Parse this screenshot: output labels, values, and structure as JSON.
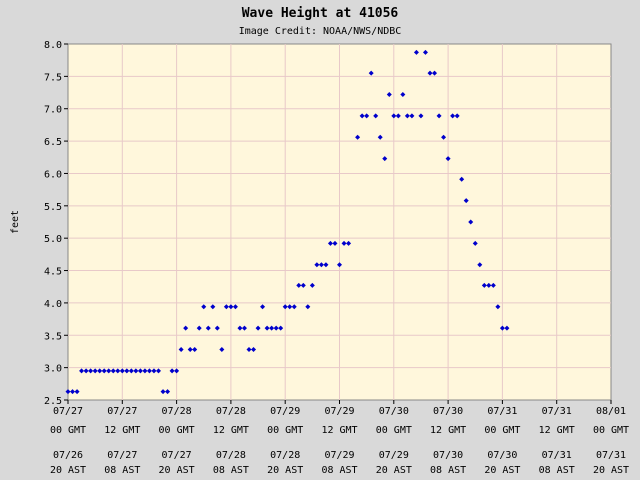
{
  "chart_data": {
    "type": "scatter",
    "title": "Wave Height at 41056",
    "subtitle": "Image Credit: NOAA/NWS/NDBC",
    "xlabel": "",
    "ylabel": "feet",
    "ylim": [
      2.5,
      8.0
    ],
    "y_ticks": [
      "2.5",
      "3.0",
      "3.5",
      "4.0",
      "4.5",
      "5.0",
      "5.5",
      "6.0",
      "6.5",
      "7.0",
      "7.5",
      "8.0"
    ],
    "xlim_hours_gmt": [
      0,
      120
    ],
    "x_ticks_gmt": [
      {
        "date": "07/27",
        "time": "00 GMT"
      },
      {
        "date": "07/27",
        "time": "12 GMT"
      },
      {
        "date": "07/28",
        "time": "00 GMT"
      },
      {
        "date": "07/28",
        "time": "12 GMT"
      },
      {
        "date": "07/29",
        "time": "00 GMT"
      },
      {
        "date": "07/29",
        "time": "12 GMT"
      },
      {
        "date": "07/30",
        "time": "00 GMT"
      },
      {
        "date": "07/30",
        "time": "12 GMT"
      },
      {
        "date": "07/31",
        "time": "00 GMT"
      },
      {
        "date": "07/31",
        "time": "12 GMT"
      },
      {
        "date": "08/01",
        "time": "00 GMT"
      }
    ],
    "x_ticks_ast": [
      {
        "date": "07/26",
        "time": "20 AST"
      },
      {
        "date": "07/27",
        "time": "08 AST"
      },
      {
        "date": "07/27",
        "time": "20 AST"
      },
      {
        "date": "07/28",
        "time": "08 AST"
      },
      {
        "date": "07/28",
        "time": "20 AST"
      },
      {
        "date": "07/29",
        "time": "08 AST"
      },
      {
        "date": "07/29",
        "time": "20 AST"
      },
      {
        "date": "07/30",
        "time": "08 AST"
      },
      {
        "date": "07/30",
        "time": "20 AST"
      },
      {
        "date": "07/31",
        "time": "08 AST"
      },
      {
        "date": "07/31",
        "time": "20 AST"
      }
    ],
    "grid": true,
    "series": [
      {
        "color": "#0000cc",
        "points": [
          {
            "x": 0,
            "y": 2.63
          },
          {
            "x": 1,
            "y": 2.63
          },
          {
            "x": 2,
            "y": 2.63
          },
          {
            "x": 3,
            "y": 2.95
          },
          {
            "x": 4,
            "y": 2.95
          },
          {
            "x": 5,
            "y": 2.95
          },
          {
            "x": 6,
            "y": 2.95
          },
          {
            "x": 7,
            "y": 2.95
          },
          {
            "x": 8,
            "y": 2.95
          },
          {
            "x": 9,
            "y": 2.95
          },
          {
            "x": 10,
            "y": 2.95
          },
          {
            "x": 11,
            "y": 2.95
          },
          {
            "x": 12,
            "y": 2.95
          },
          {
            "x": 13,
            "y": 2.95
          },
          {
            "x": 14,
            "y": 2.95
          },
          {
            "x": 15,
            "y": 2.95
          },
          {
            "x": 16,
            "y": 2.95
          },
          {
            "x": 17,
            "y": 2.95
          },
          {
            "x": 18,
            "y": 2.95
          },
          {
            "x": 19,
            "y": 2.95
          },
          {
            "x": 20,
            "y": 2.95
          },
          {
            "x": 21,
            "y": 2.63
          },
          {
            "x": 22,
            "y": 2.63
          },
          {
            "x": 23,
            "y": 2.95
          },
          {
            "x": 24,
            "y": 2.95
          },
          {
            "x": 25,
            "y": 3.28
          },
          {
            "x": 26,
            "y": 3.61
          },
          {
            "x": 27,
            "y": 3.28
          },
          {
            "x": 28,
            "y": 3.28
          },
          {
            "x": 29,
            "y": 3.61
          },
          {
            "x": 30,
            "y": 3.94
          },
          {
            "x": 31,
            "y": 3.61
          },
          {
            "x": 32,
            "y": 3.94
          },
          {
            "x": 33,
            "y": 3.61
          },
          {
            "x": 34,
            "y": 3.28
          },
          {
            "x": 35,
            "y": 3.94
          },
          {
            "x": 36,
            "y": 3.94
          },
          {
            "x": 37,
            "y": 3.94
          },
          {
            "x": 38,
            "y": 3.61
          },
          {
            "x": 39,
            "y": 3.61
          },
          {
            "x": 40,
            "y": 3.28
          },
          {
            "x": 41,
            "y": 3.28
          },
          {
            "x": 42,
            "y": 3.61
          },
          {
            "x": 43,
            "y": 3.94
          },
          {
            "x": 44,
            "y": 3.61
          },
          {
            "x": 45,
            "y": 3.61
          },
          {
            "x": 46,
            "y": 3.61
          },
          {
            "x": 47,
            "y": 3.61
          },
          {
            "x": 48,
            "y": 3.94
          },
          {
            "x": 49,
            "y": 3.94
          },
          {
            "x": 50,
            "y": 3.94
          },
          {
            "x": 51,
            "y": 4.27
          },
          {
            "x": 52,
            "y": 4.27
          },
          {
            "x": 53,
            "y": 3.94
          },
          {
            "x": 54,
            "y": 4.27
          },
          {
            "x": 55,
            "y": 4.59
          },
          {
            "x": 56,
            "y": 4.59
          },
          {
            "x": 57,
            "y": 4.59
          },
          {
            "x": 58,
            "y": 4.92
          },
          {
            "x": 59,
            "y": 4.92
          },
          {
            "x": 60,
            "y": 4.59
          },
          {
            "x": 61,
            "y": 4.92
          },
          {
            "x": 62,
            "y": 4.92
          },
          {
            "x": 64,
            "y": 6.56
          },
          {
            "x": 65,
            "y": 6.89
          },
          {
            "x": 66,
            "y": 6.89
          },
          {
            "x": 67,
            "y": 7.55
          },
          {
            "x": 68,
            "y": 6.89
          },
          {
            "x": 69,
            "y": 6.56
          },
          {
            "x": 70,
            "y": 6.23
          },
          {
            "x": 71,
            "y": 7.22
          },
          {
            "x": 72,
            "y": 6.89
          },
          {
            "x": 73,
            "y": 6.89
          },
          {
            "x": 74,
            "y": 7.22
          },
          {
            "x": 75,
            "y": 6.89
          },
          {
            "x": 76,
            "y": 6.89
          },
          {
            "x": 77,
            "y": 7.87
          },
          {
            "x": 78,
            "y": 6.89
          },
          {
            "x": 79,
            "y": 7.87
          },
          {
            "x": 80,
            "y": 7.55
          },
          {
            "x": 81,
            "y": 7.55
          },
          {
            "x": 82,
            "y": 6.89
          },
          {
            "x": 83,
            "y": 6.56
          },
          {
            "x": 84,
            "y": 6.23
          },
          {
            "x": 85,
            "y": 6.89
          },
          {
            "x": 86,
            "y": 6.89
          },
          {
            "x": 87,
            "y": 5.91
          },
          {
            "x": 88,
            "y": 5.58
          },
          {
            "x": 89,
            "y": 5.25
          },
          {
            "x": 90,
            "y": 4.92
          },
          {
            "x": 91,
            "y": 4.59
          },
          {
            "x": 92,
            "y": 4.27
          },
          {
            "x": 93,
            "y": 4.27
          },
          {
            "x": 94,
            "y": 4.27
          },
          {
            "x": 95,
            "y": 3.94
          },
          {
            "x": 96,
            "y": 3.61
          },
          {
            "x": 97,
            "y": 3.61
          }
        ]
      }
    ]
  },
  "colors": {
    "background": "#d9d9d9",
    "plot_background": "#fff7dc",
    "grid": "#e8c9c9",
    "marker": "#0000cc"
  }
}
